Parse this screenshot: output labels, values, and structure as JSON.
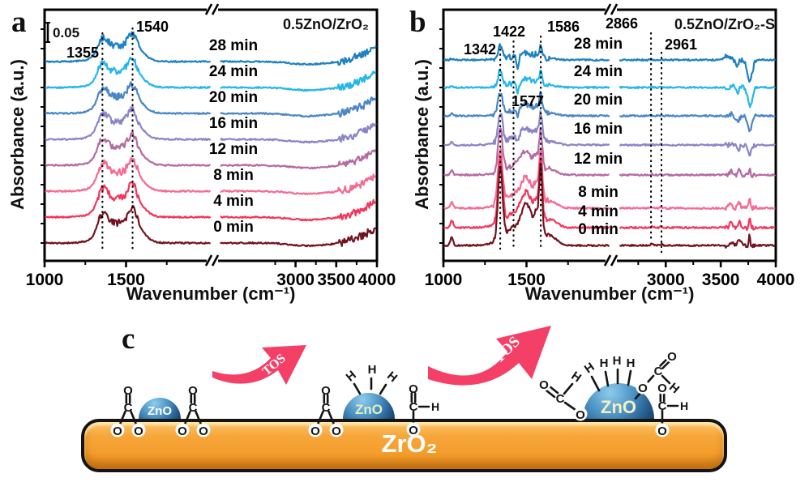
{
  "figure_bg": "#ffffff",
  "chart_data": [
    {
      "type": "line",
      "panel_letter": "a",
      "title": "0.5ZnO/ZrO₂",
      "xlabel": "Wavenumber (cm⁻¹)",
      "ylabel": "Absorbance (a.u.)",
      "scale_bar": "0.05",
      "x_axis": {
        "left_range": [
          1000,
          2020
        ],
        "right_range": [
          2040,
          4000
        ],
        "axis_break": true,
        "major_ticks": [
          1000,
          1500,
          3000,
          3500,
          4000
        ],
        "minor_ticks": [
          1250,
          1750,
          2750,
          3250,
          3750
        ]
      },
      "grid": false,
      "legend": false,
      "peak_annotations": [
        {
          "label": "1355",
          "x": 1355,
          "line": true
        },
        {
          "label": "1540",
          "x": 1540,
          "line": true
        }
      ],
      "profile": {
        "peaks": [
          [
            1355,
            42,
            0.3
          ],
          [
            1450,
            130,
            0.33
          ],
          [
            1540,
            40,
            0.34
          ],
          [
            1600,
            50,
            0.08
          ]
        ],
        "tail": [
          3420,
          0.26
        ],
        "dip": [
          [
            3150,
            300,
            -0.045
          ]
        ],
        "noise_base": 0.012,
        "noise_zones": [
          [
            1330,
            1580,
            0.045
          ],
          [
            3520,
            3960,
            0.05
          ]
        ]
      },
      "series": [
        {
          "name": "0 min",
          "color": "#73131f",
          "amp": 1.0
        },
        {
          "name": "4 min",
          "color": "#f4355c",
          "amp": 0.96
        },
        {
          "name": "8 min",
          "color": "#f46b92",
          "amp": 0.93
        },
        {
          "name": "12 min",
          "color": "#b56ba2",
          "amp": 0.9
        },
        {
          "name": "16 min",
          "color": "#8b85c7",
          "amp": 0.87
        },
        {
          "name": "20 min",
          "color": "#4a86c6",
          "amp": 0.84
        },
        {
          "name": "24 min",
          "color": "#25b6ea",
          "amp": 0.82
        },
        {
          "name": "28 min",
          "color": "#1d81c3",
          "amp": 0.8
        }
      ]
    },
    {
      "type": "line",
      "panel_letter": "b",
      "title": "0.5ZnO/ZrO₂-S",
      "xlabel": "Wavenumber (cm⁻¹)",
      "ylabel": "Absorbance (a.u.)",
      "scale_bar": "",
      "x_axis": {
        "left_range": [
          1000,
          2000
        ],
        "right_range": [
          2550,
          4000
        ],
        "axis_break": true,
        "major_ticks": [
          1000,
          1500,
          3000,
          3500,
          4000
        ],
        "minor_ticks": [
          1250,
          1750,
          2750,
          3250,
          3750
        ]
      },
      "grid": false,
      "legend": false,
      "peak_annotations": [
        {
          "label": "1342",
          "x": 1342,
          "line": true
        },
        {
          "label": "1422",
          "x": 1422,
          "line": true
        },
        {
          "label": "1577",
          "x": 1577,
          "line": false
        },
        {
          "label": "1586",
          "x": 1586,
          "line": true
        },
        {
          "label": "2866",
          "x": 2866,
          "line": true
        },
        {
          "label": "2961",
          "x": 2961,
          "line": true
        }
      ],
      "profile": {
        "peaks": [
          [
            1050,
            12,
            0.1
          ],
          [
            1342,
            19,
            0.9
          ],
          [
            1460,
            120,
            0.24
          ],
          [
            1500,
            40,
            0.3
          ],
          [
            1560,
            22,
            0.25
          ],
          [
            1586,
            13,
            0.8
          ],
          [
            1640,
            60,
            0.1
          ],
          [
            2870,
            16,
            0.02
          ],
          [
            2960,
            12,
            0.02
          ]
        ],
        "tail": null,
        "dip": [],
        "noise_base": 0.01,
        "noise_zones": [
          [
            1300,
            1640,
            0.025
          ],
          [
            3540,
            3820,
            0.02
          ]
        ]
      },
      "series": [
        {
          "name": "0 min",
          "color": "#73131f",
          "amp": 1.0,
          "extra_peaks": [
            [
              3590,
              22,
              0.05
            ],
            [
              3668,
              16,
              0.09
            ],
            [
              3762,
              9,
              0.13
            ]
          ]
        },
        {
          "name": "4 min",
          "color": "#f4355c",
          "amp": 0.86,
          "extra_peaks": [
            [
              3590,
              22,
              0.05
            ],
            [
              3668,
              16,
              0.09
            ],
            [
              3762,
              9,
              0.12
            ]
          ]
        },
        {
          "name": "8 min",
          "color": "#f46b92",
          "amp": 0.75,
          "extra_peaks": [
            [
              3590,
              22,
              0.05
            ],
            [
              3668,
              16,
              0.08
            ],
            [
              3762,
              9,
              0.11
            ]
          ]
        },
        {
          "name": "12 min",
          "color": "#b56ba2",
          "amp": 0.57,
          "extra_peaks": [
            [
              3595,
              20,
              0.04
            ],
            [
              3665,
              15,
              0.07
            ],
            [
              3760,
              9,
              0.09
            ]
          ]
        },
        {
          "name": "16 min",
          "color": "#8b85c7",
          "amp": 0.41,
          "extra_peaks": [
            [
              1447,
              10,
              -0.06
            ],
            [
              3600,
              18,
              0.03
            ],
            [
              3660,
              20,
              -0.05
            ],
            [
              3765,
              26,
              -0.11
            ]
          ]
        },
        {
          "name": "20 min",
          "color": "#4a86c6",
          "amp": 0.28,
          "extra_peaks": [
            [
              1447,
              10,
              -0.11
            ],
            [
              3600,
              15,
              0.03
            ],
            [
              3655,
              20,
              -0.06
            ],
            [
              3765,
              28,
              -0.17
            ]
          ]
        },
        {
          "name": "24 min",
          "color": "#25b6ea",
          "amp": 0.21,
          "extra_peaks": [
            [
              1447,
              10,
              -0.15
            ],
            [
              3620,
              15,
              0.04
            ],
            [
              3650,
              18,
              -0.07
            ],
            [
              3768,
              30,
              -0.23
            ]
          ]
        },
        {
          "name": "28 min",
          "color": "#1d81c3",
          "amp": 0.17,
          "extra_peaks": [
            [
              1447,
              10,
              -0.17
            ],
            [
              3560,
              40,
              0.05
            ],
            [
              3645,
              20,
              -0.08
            ],
            [
              3764,
              32,
              -0.26
            ]
          ]
        }
      ]
    }
  ],
  "panel_c": {
    "letter": "c",
    "slab_label": "ZrO₂",
    "dome_label": "ZnO",
    "arrow_label": "TOS",
    "atom_glyphs": {
      "O": "O",
      "C": "C",
      "H": "H"
    },
    "colors": {
      "slab": "#f6a435",
      "slab_border": "#141414",
      "dome_light": "#8dcbec",
      "dome_dark": "#173f66",
      "arrow": "#f43f66",
      "arrow_text": "#ffffff",
      "slab_text": "#ffffff",
      "dome_text_1": "#ffffff",
      "dome_text_2": "#e4f0c4",
      "dome_text_3": "#f3efc2",
      "bond": "#141414"
    }
  }
}
